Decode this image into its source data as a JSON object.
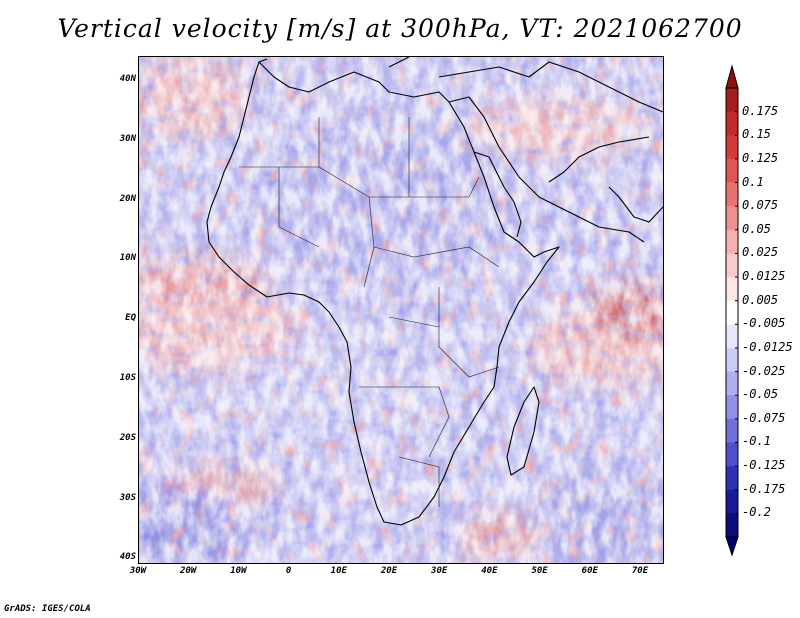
{
  "title": "Vertical velocity [m/s] at 300hPa, VT: 2021062700",
  "footer": "GrADS: IGES/COLA",
  "latitude_labels": [
    "40N",
    "30N",
    "20N",
    "10N",
    "EQ",
    "10S",
    "20S",
    "30S",
    "40S"
  ],
  "longitude_labels": [
    "30W",
    "20W",
    "10W",
    "0",
    "10E",
    "20E",
    "30E",
    "40E",
    "50E",
    "60E",
    "70E"
  ],
  "colorbar": {
    "labels": [
      "0.175",
      "0.15",
      "0.125",
      "0.1",
      "0.075",
      "0.05",
      "0.025",
      "0.0125",
      "0.005",
      "-0.005",
      "-0.0125",
      "-0.025",
      "-0.05",
      "-0.075",
      "-0.1",
      "-0.125",
      "-0.175",
      "-0.2"
    ],
    "colors": [
      "#a51c1c",
      "#c02a2a",
      "#d33a3a",
      "#e05555",
      "#e87272",
      "#ef9090",
      "#f5b0b0",
      "#f9cccc",
      "#fce6e6",
      "#ffffff",
      "#e6e6fc",
      "#ccccf8",
      "#b0b0f0",
      "#9090e8",
      "#7070dc",
      "#5050cc",
      "#3030b4",
      "#1a1a96",
      "#0c0c78"
    ]
  }
}
